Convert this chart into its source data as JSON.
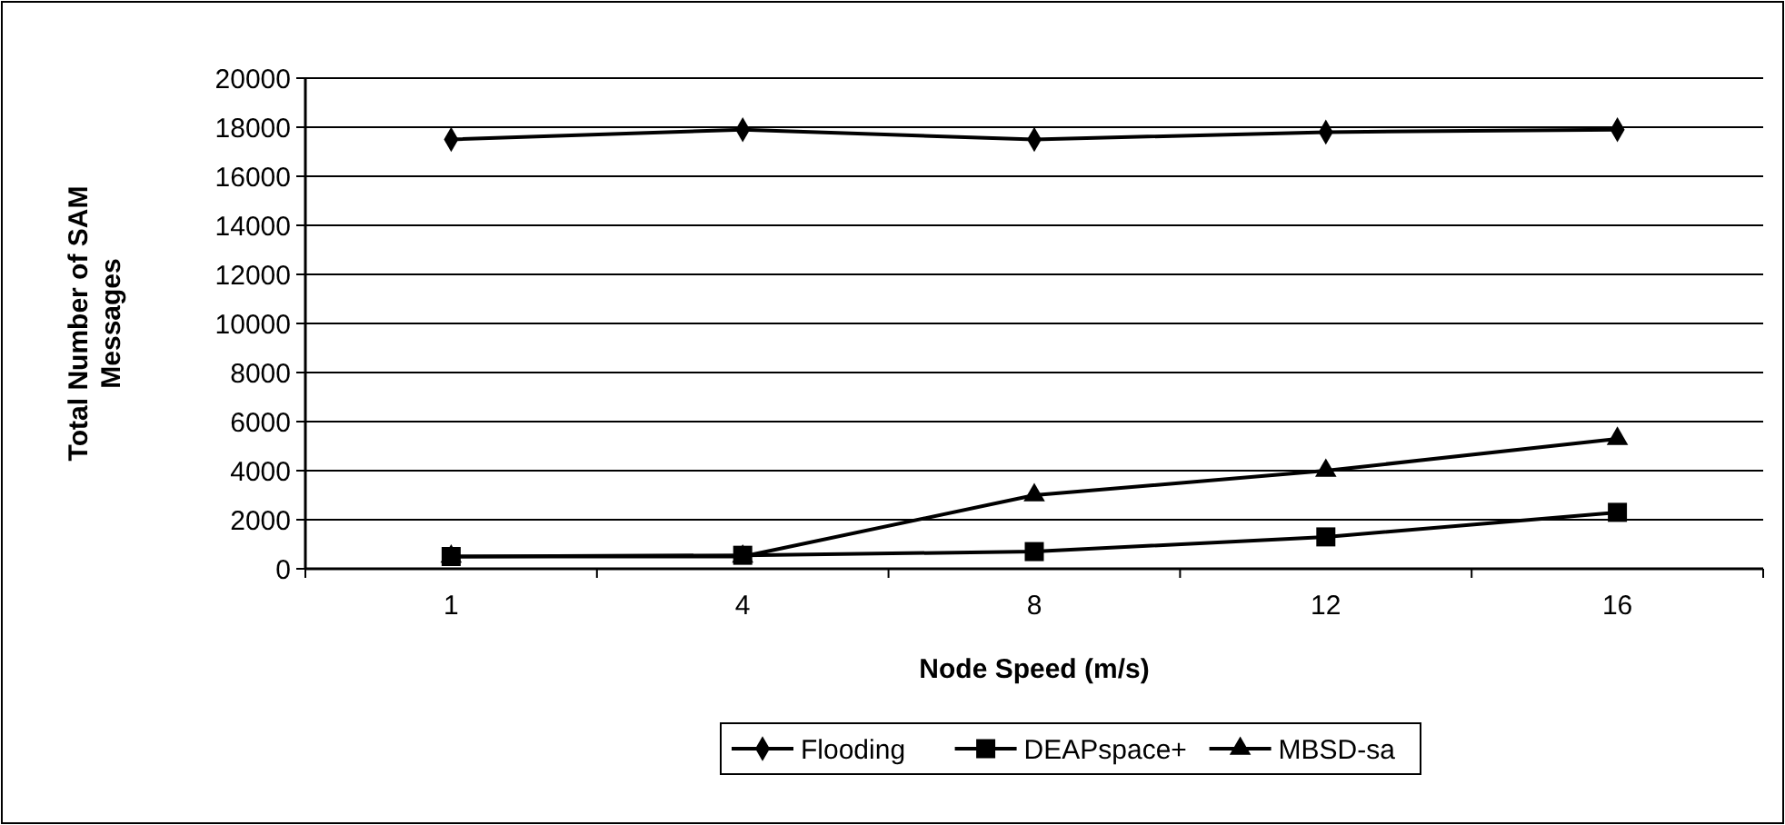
{
  "chart_data": {
    "type": "line",
    "xlabel": "Node Speed (m/s)",
    "ylabel": "Total Number of SAM Messages",
    "categories": [
      "1",
      "4",
      "8",
      "12",
      "16"
    ],
    "ylim": [
      0,
      20000
    ],
    "yticks": [
      0,
      2000,
      4000,
      6000,
      8000,
      10000,
      12000,
      14000,
      16000,
      18000,
      20000
    ],
    "grid": "y",
    "legend": "bottom",
    "line_style": "solid",
    "series": [
      {
        "name": "Flooding",
        "color": "#000000",
        "marker": "diamond",
        "values": [
          17500,
          17900,
          17500,
          17800,
          17900
        ]
      },
      {
        "name": "DEAPspace+",
        "color": "#000000",
        "marker": "square",
        "values": [
          500,
          550,
          700,
          1300,
          2300
        ]
      },
      {
        "name": "MBSD-sa",
        "color": "#000000",
        "marker": "triangle",
        "values": [
          500,
          500,
          3000,
          4000,
          5300
        ]
      }
    ]
  }
}
